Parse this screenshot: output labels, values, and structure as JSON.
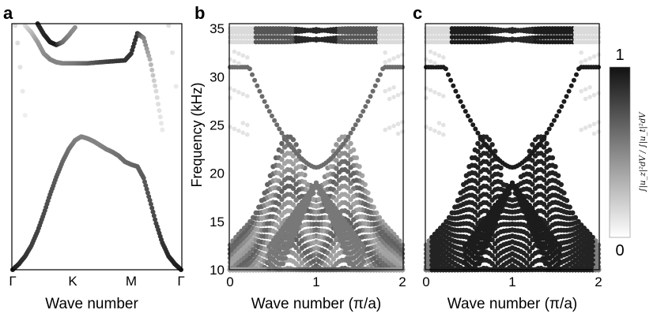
{
  "chart_data": [
    {
      "panel": "a",
      "type": "scatter",
      "xlabel": "Wave number",
      "x_ticks": [
        "Γ",
        "K",
        "M",
        "Γ"
      ],
      "ylim": [
        10,
        35.5
      ],
      "series": [
        {
          "name": "",
          "points": [
            {
              "x": 0,
              "y": 10.0,
              "c": 0.95
            },
            {
              "x": 0.05,
              "y": 10.6,
              "c": 0.9
            },
            {
              "x": 0.1,
              "y": 11.4,
              "c": 0.85
            },
            {
              "x": 0.15,
              "y": 12.5,
              "c": 0.8
            },
            {
              "x": 0.2,
              "y": 14.0,
              "c": 0.78
            },
            {
              "x": 0.25,
              "y": 15.8,
              "c": 0.75
            },
            {
              "x": 0.3,
              "y": 17.8,
              "c": 0.72
            },
            {
              "x": 0.35,
              "y": 19.6,
              "c": 0.68
            },
            {
              "x": 0.4,
              "y": 21.2,
              "c": 0.63
            },
            {
              "x": 0.45,
              "y": 22.5,
              "c": 0.58
            },
            {
              "x": 0.5,
              "y": 23.4,
              "c": 0.52
            },
            {
              "x": 0.55,
              "y": 23.8,
              "c": 0.5
            },
            {
              "x": 0.6,
              "y": 23.6,
              "c": 0.5
            },
            {
              "x": 0.65,
              "y": 23.3,
              "c": 0.5
            },
            {
              "x": 0.7,
              "y": 22.9,
              "c": 0.5
            },
            {
              "x": 0.75,
              "y": 22.5,
              "c": 0.52
            },
            {
              "x": 0.8,
              "y": 22.2,
              "c": 0.55
            },
            {
              "x": 0.85,
              "y": 21.8,
              "c": 0.58
            },
            {
              "x": 0.9,
              "y": 21.2,
              "c": 0.6
            },
            {
              "x": 0.95,
              "y": 20.9,
              "c": 0.62
            },
            {
              "x": 1.0,
              "y": 20.7,
              "c": 0.65
            },
            {
              "x": 1.05,
              "y": 19.5,
              "c": 0.68
            },
            {
              "x": 1.1,
              "y": 17.2,
              "c": 0.72
            },
            {
              "x": 1.15,
              "y": 14.8,
              "c": 0.78
            },
            {
              "x": 1.2,
              "y": 12.8,
              "c": 0.84
            },
            {
              "x": 1.25,
              "y": 11.4,
              "c": 0.9
            },
            {
              "x": 1.3,
              "y": 10.6,
              "c": 0.93
            },
            {
              "x": 1.35,
              "y": 10.0,
              "c": 0.95
            }
          ]
        },
        {
          "name": "",
          "points": [
            {
              "x": 0.1,
              "y": 35.3,
              "c": 0.1
            },
            {
              "x": 0.15,
              "y": 34.6,
              "c": 0.25
            },
            {
              "x": 0.2,
              "y": 33.6,
              "c": 0.4
            },
            {
              "x": 0.25,
              "y": 32.4,
              "c": 0.45
            },
            {
              "x": 0.3,
              "y": 31.8,
              "c": 0.5
            },
            {
              "x": 0.35,
              "y": 31.5,
              "c": 0.5
            },
            {
              "x": 0.4,
              "y": 31.4,
              "c": 0.5
            },
            {
              "x": 0.5,
              "y": 31.4,
              "c": 0.55
            },
            {
              "x": 0.6,
              "y": 31.4,
              "c": 0.65
            },
            {
              "x": 0.7,
              "y": 31.5,
              "c": 0.75
            },
            {
              "x": 0.8,
              "y": 31.6,
              "c": 0.82
            },
            {
              "x": 0.9,
              "y": 31.7,
              "c": 0.85
            },
            {
              "x": 0.95,
              "y": 32.4,
              "c": 0.85
            },
            {
              "x": 1.0,
              "y": 34.5,
              "c": 0.85
            },
            {
              "x": 1.05,
              "y": 34.0,
              "c": 0.5
            },
            {
              "x": 1.1,
              "y": 31.8,
              "c": 0.3
            },
            {
              "x": 1.15,
              "y": 28.5,
              "c": 0.12
            },
            {
              "x": 1.2,
              "y": 24.5,
              "c": 0.05
            }
          ]
        },
        {
          "name": "",
          "points": [
            {
              "x": 0.2,
              "y": 35.5,
              "c": 0.9
            },
            {
              "x": 0.25,
              "y": 34.4,
              "c": 0.9
            },
            {
              "x": 0.3,
              "y": 33.6,
              "c": 0.95
            },
            {
              "x": 0.35,
              "y": 33.3,
              "c": 0.95
            },
            {
              "x": 0.4,
              "y": 33.6,
              "c": 0.6
            },
            {
              "x": 0.45,
              "y": 34.3,
              "c": 0.5
            },
            {
              "x": 0.5,
              "y": 35.1,
              "c": 0.45
            }
          ]
        },
        {
          "name": "",
          "points": [
            {
              "x": 0.02,
              "y": 35.3,
              "c": 0.1
            },
            {
              "x": 0.04,
              "y": 33.5,
              "c": 0.1
            },
            {
              "x": 0.06,
              "y": 31.0,
              "c": 0.08
            },
            {
              "x": 0.08,
              "y": 28.5,
              "c": 0.05
            },
            {
              "x": 0.1,
              "y": 26.0,
              "c": 0.03
            },
            {
              "x": 1.25,
              "y": 35.3,
              "c": 0.1
            },
            {
              "x": 1.28,
              "y": 32.5,
              "c": 0.07
            },
            {
              "x": 1.31,
              "y": 29.0,
              "c": 0.05
            }
          ]
        }
      ]
    },
    {
      "panel": "b",
      "type": "scatter",
      "xlabel": "Wave number (π/a)",
      "ylabel": "Frequency (kHz)",
      "xlim": [
        0,
        2
      ],
      "ylim": [
        10,
        35.5
      ],
      "x_ticks": [
        "0",
        "1",
        "2"
      ],
      "y_ticks": [
        "10",
        "15",
        "20",
        "25",
        "30",
        "35"
      ],
      "bands": {
        "count": 18,
        "f_top": 23.8,
        "f_bottom": 10.0,
        "f_gap_low": 18.8,
        "f_gap_high": 21.0,
        "upper_band_f0": 31.0,
        "upper_band_min": 20.6,
        "flat_bands": [
          33.6,
          34.1,
          34.6,
          35.0
        ]
      }
    },
    {
      "panel": "c",
      "type": "scatter",
      "xlabel": "Wave number (π/a)",
      "xlim": [
        0,
        2
      ],
      "ylim": [
        10,
        35.5
      ],
      "x_ticks": [
        "0",
        "1",
        "2"
      ],
      "bands": {
        "count": 18,
        "f_top": 23.8,
        "f_bottom": 10.0,
        "f_gap_low": 18.8,
        "f_gap_high": 21.0,
        "upper_band_f0": 31.0,
        "upper_band_min": 20.6,
        "flat_bands": [
          33.6,
          34.1,
          34.6,
          35.0
        ]
      }
    }
  ],
  "colorbar": {
    "min_label": "0",
    "max_label": "1",
    "label": "∫|u_z|²dV / ∫|u_t|²dV"
  },
  "panel_letters": [
    "a",
    "b",
    "c"
  ]
}
